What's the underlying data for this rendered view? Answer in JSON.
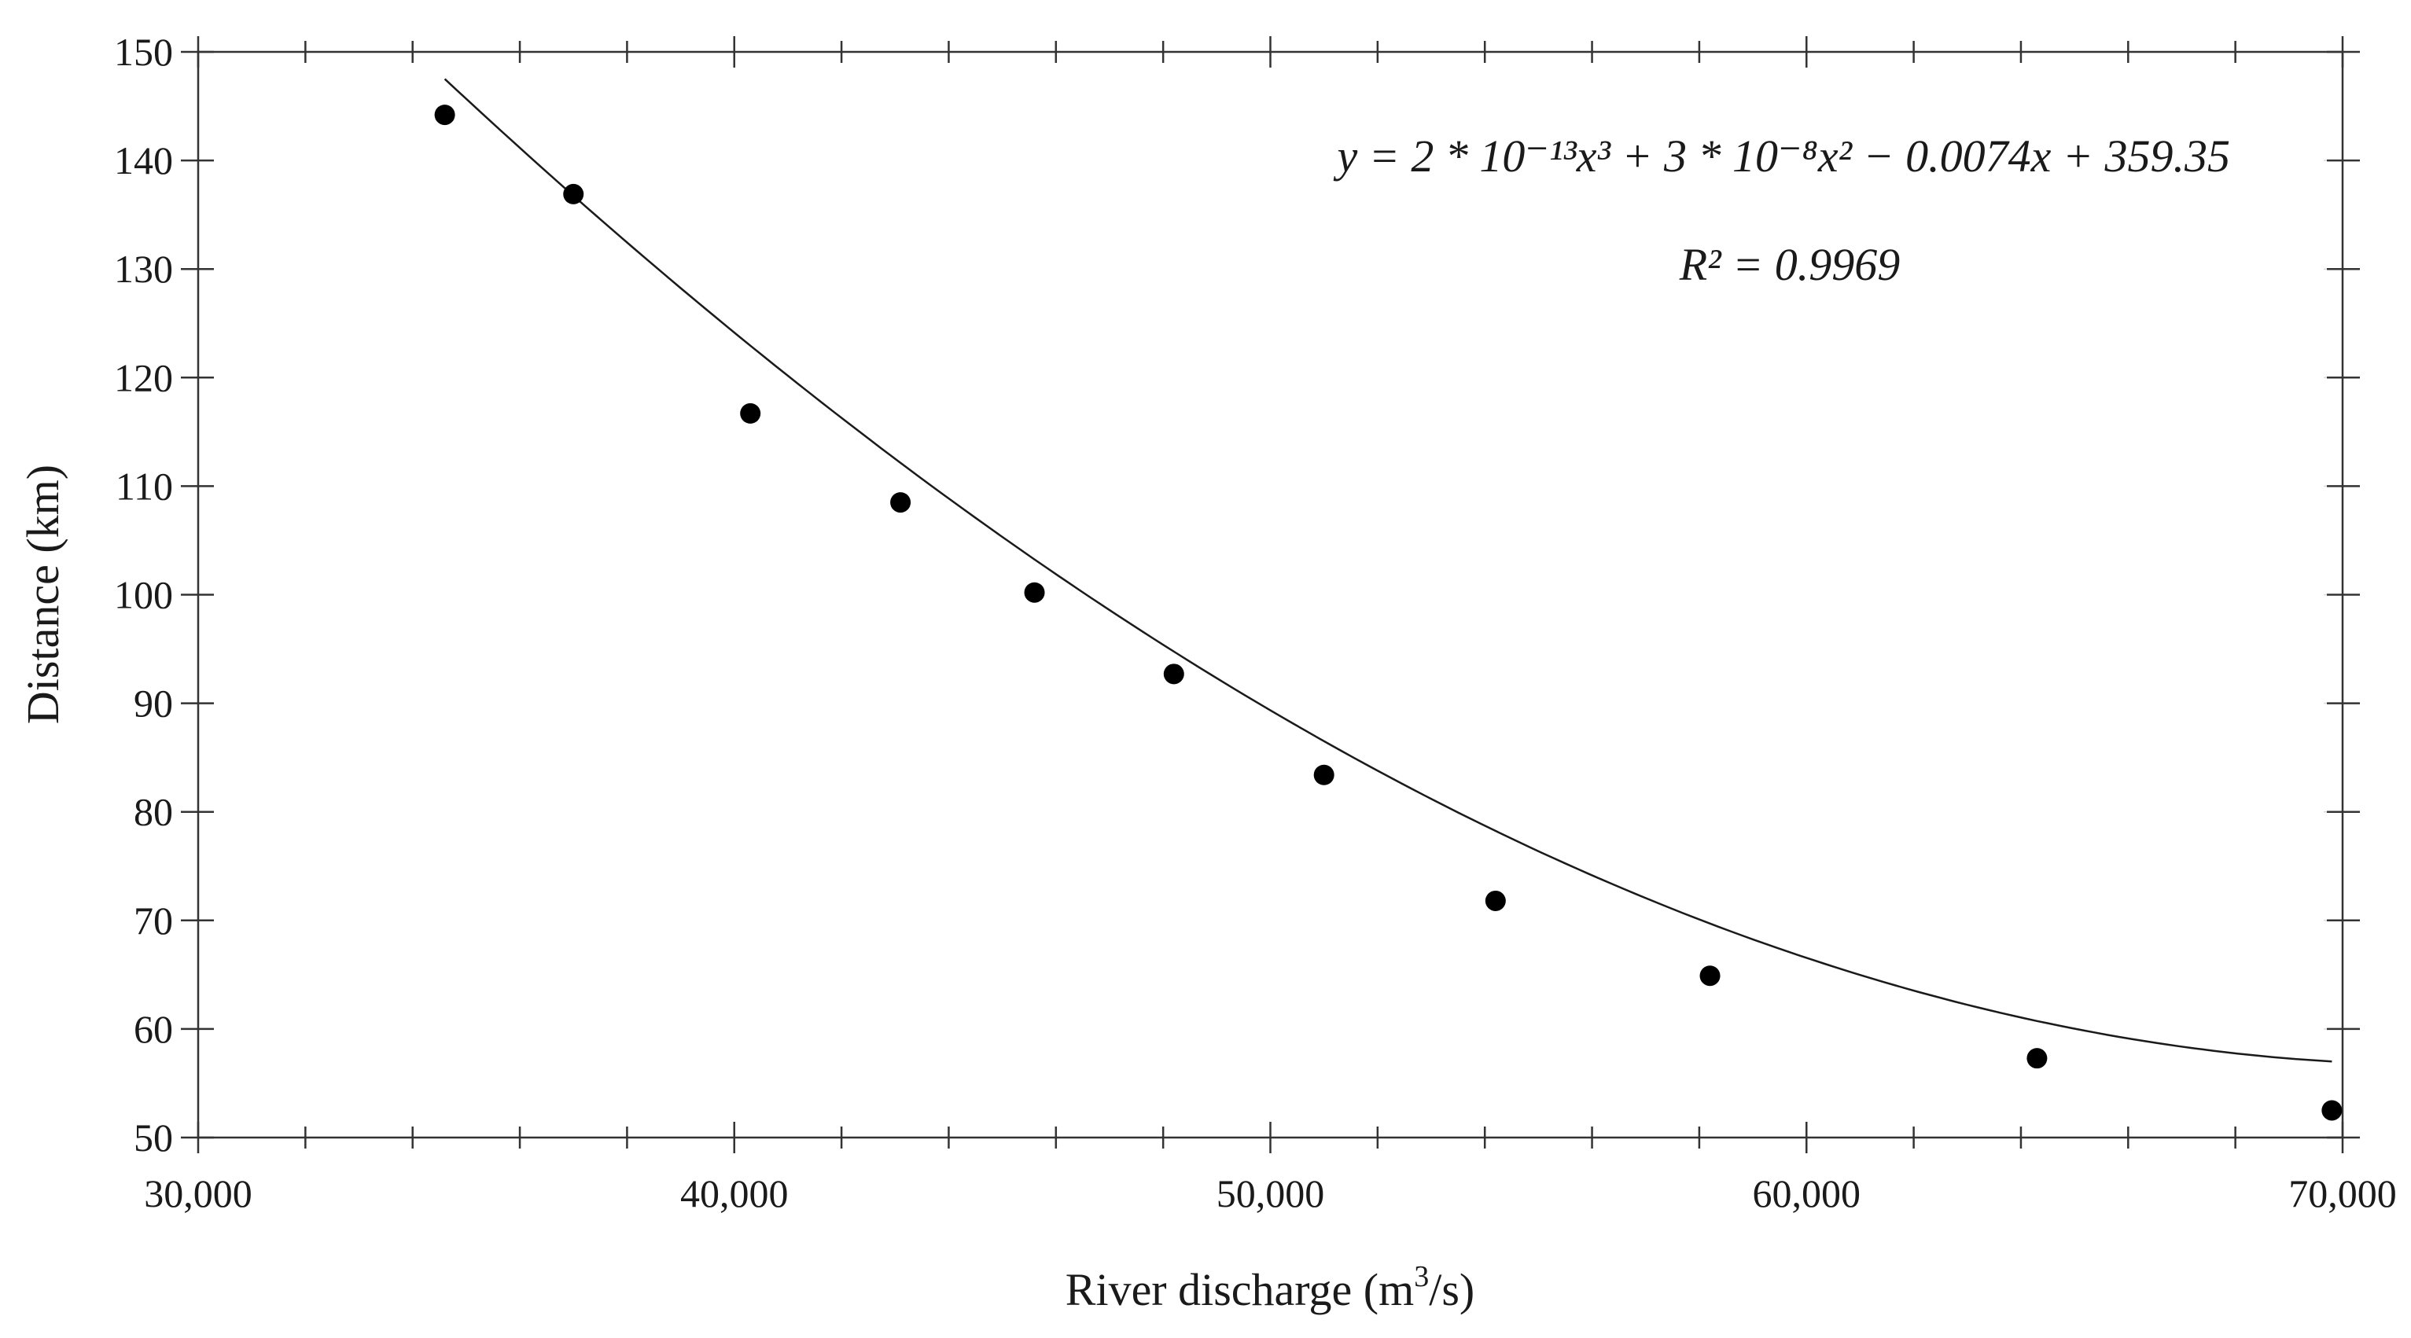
{
  "chart_data": {
    "type": "scatter",
    "title": "",
    "xlabel": "River discharge (m³/s)",
    "xlabel_parts": {
      "before": "River discharge (m",
      "sup": "3",
      "after": "/s)"
    },
    "ylabel": "Distance (km)",
    "xlim": [
      30000,
      70000
    ],
    "ylim": [
      50,
      150
    ],
    "x_ticks": [
      30000,
      40000,
      50000,
      60000,
      70000
    ],
    "x_tick_labels": [
      "30,000",
      "40,000",
      "50,000",
      "60,000",
      "70,000"
    ],
    "y_ticks": [
      50,
      60,
      70,
      80,
      90,
      100,
      110,
      120,
      130,
      140,
      150
    ],
    "y_tick_labels": [
      "50",
      "60",
      "70",
      "80",
      "90",
      "100",
      "110",
      "120",
      "130",
      "140",
      "150"
    ],
    "grid": false,
    "colors": {
      "points": "#000000",
      "fit": "#1a1a1a",
      "axes": "#333333"
    },
    "series": [
      {
        "x": [
          34600,
          37000,
          40300,
          43100,
          45600,
          48200,
          51000,
          54200,
          58200,
          64300,
          69800
        ],
        "y": [
          144.2,
          136.9,
          116.7,
          108.5,
          100.2,
          92.7,
          83.4,
          71.8,
          64.9,
          57.3,
          52.5
        ]
      }
    ],
    "fit": {
      "coefficients": [
        2e-13,
        3e-08,
        -0.0074,
        359.35
      ],
      "x_range": [
        34600,
        69800
      ]
    },
    "annotations": {
      "equation": "y = 2 * 10⁻¹³x³ + 3 * 10⁻⁸x² − 0.0074x + 359.35",
      "r_squared": "R² = 0.9969"
    }
  }
}
